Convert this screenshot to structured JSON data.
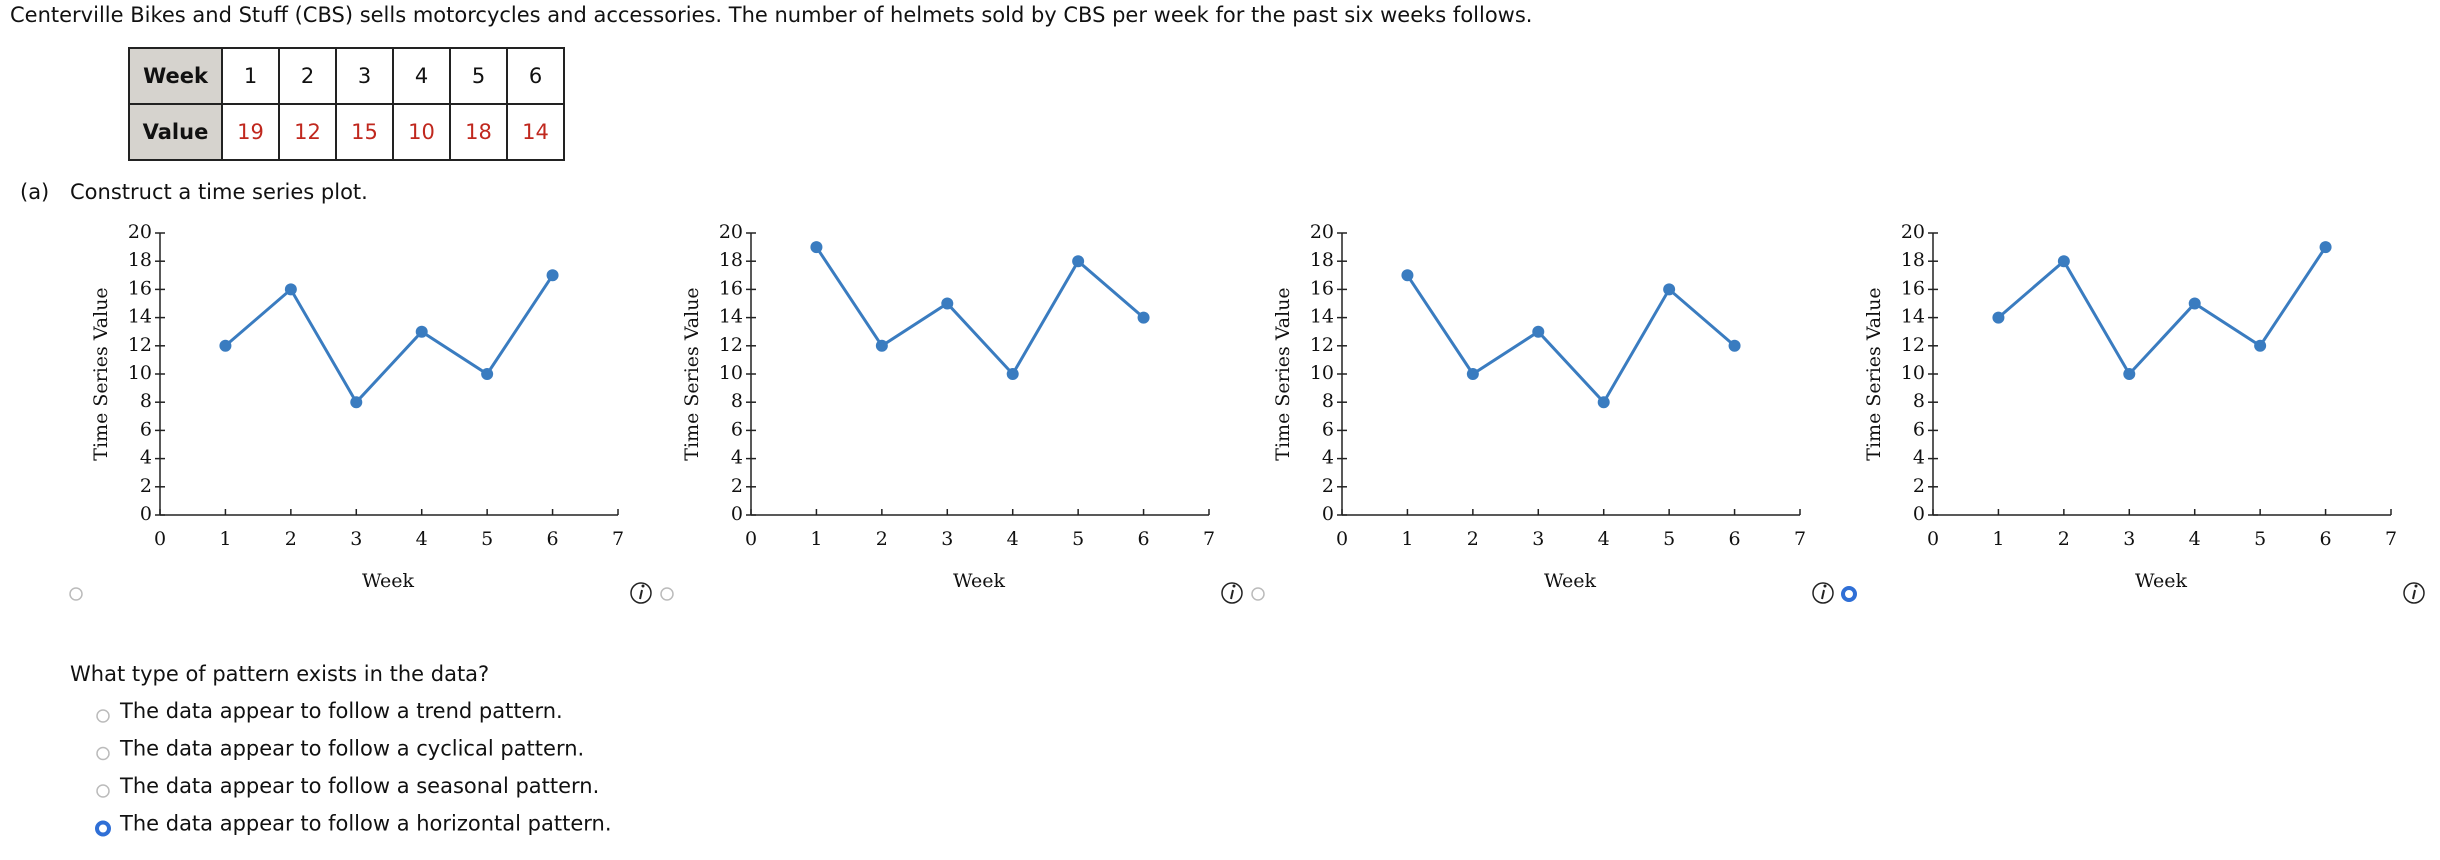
{
  "intro": "Centerville Bikes and Stuff (CBS) sells motorcycles and accessories. The number of helmets sold by CBS per week for the past six weeks follows.",
  "table": {
    "rows": [
      [
        "Week",
        1,
        2,
        3,
        4,
        5,
        6
      ],
      [
        "Value",
        19,
        12,
        15,
        10,
        18,
        14
      ]
    ]
  },
  "part": "(a)",
  "instruction": "Construct a time series plot.",
  "chart_data": [
    {
      "type": "line",
      "x": [
        1,
        2,
        3,
        4,
        5,
        6
      ],
      "values": [
        12,
        16,
        8,
        13,
        10,
        17
      ],
      "color": "#3a7cc0",
      "xlabel": "Week",
      "ylabel": "Time Series Value",
      "xlim": [
        0,
        7
      ],
      "xticks": [
        0,
        1,
        2,
        3,
        4,
        5,
        6,
        7
      ],
      "ylim": [
        0,
        20
      ],
      "yticks": [
        0,
        2,
        4,
        6,
        8,
        10,
        12,
        14,
        16,
        18,
        20
      ],
      "selected": false
    },
    {
      "type": "line",
      "x": [
        1,
        2,
        3,
        4,
        5,
        6
      ],
      "values": [
        19,
        12,
        15,
        10,
        18,
        14
      ],
      "color": "#3a7cc0",
      "xlabel": "Week",
      "ylabel": "Time Series Value",
      "xlim": [
        0,
        7
      ],
      "xticks": [
        0,
        1,
        2,
        3,
        4,
        5,
        6,
        7
      ],
      "ylim": [
        0,
        20
      ],
      "yticks": [
        0,
        2,
        4,
        6,
        8,
        10,
        12,
        14,
        16,
        18,
        20
      ],
      "selected": false
    },
    {
      "type": "line",
      "x": [
        1,
        2,
        3,
        4,
        5,
        6
      ],
      "values": [
        17,
        10,
        13,
        8,
        16,
        12
      ],
      "color": "#3a7cc0",
      "xlabel": "Week",
      "ylabel": "Time Series Value",
      "xlim": [
        0,
        7
      ],
      "xticks": [
        0,
        1,
        2,
        3,
        4,
        5,
        6,
        7
      ],
      "ylim": [
        0,
        20
      ],
      "yticks": [
        0,
        2,
        4,
        6,
        8,
        10,
        12,
        14,
        16,
        18,
        20
      ],
      "selected": false
    },
    {
      "type": "line",
      "x": [
        1,
        2,
        3,
        4,
        5,
        6
      ],
      "values": [
        14,
        18,
        10,
        15,
        12,
        19
      ],
      "color": "#3a7cc0",
      "xlabel": "Week",
      "ylabel": "Time Series Value",
      "xlim": [
        0,
        7
      ],
      "xticks": [
        0,
        1,
        2,
        3,
        4,
        5,
        6,
        7
      ],
      "ylim": [
        0,
        20
      ],
      "yticks": [
        0,
        2,
        4,
        6,
        8,
        10,
        12,
        14,
        16,
        18,
        20
      ],
      "selected": true
    }
  ],
  "question": "What type of pattern exists in the data?",
  "options": [
    {
      "text": "The data appear to follow a trend pattern.",
      "selected": false
    },
    {
      "text": "The data appear to follow a cyclical pattern.",
      "selected": false
    },
    {
      "text": "The data appear to follow a seasonal pattern.",
      "selected": false
    },
    {
      "text": "The data appear to follow a horizontal pattern.",
      "selected": true
    }
  ]
}
